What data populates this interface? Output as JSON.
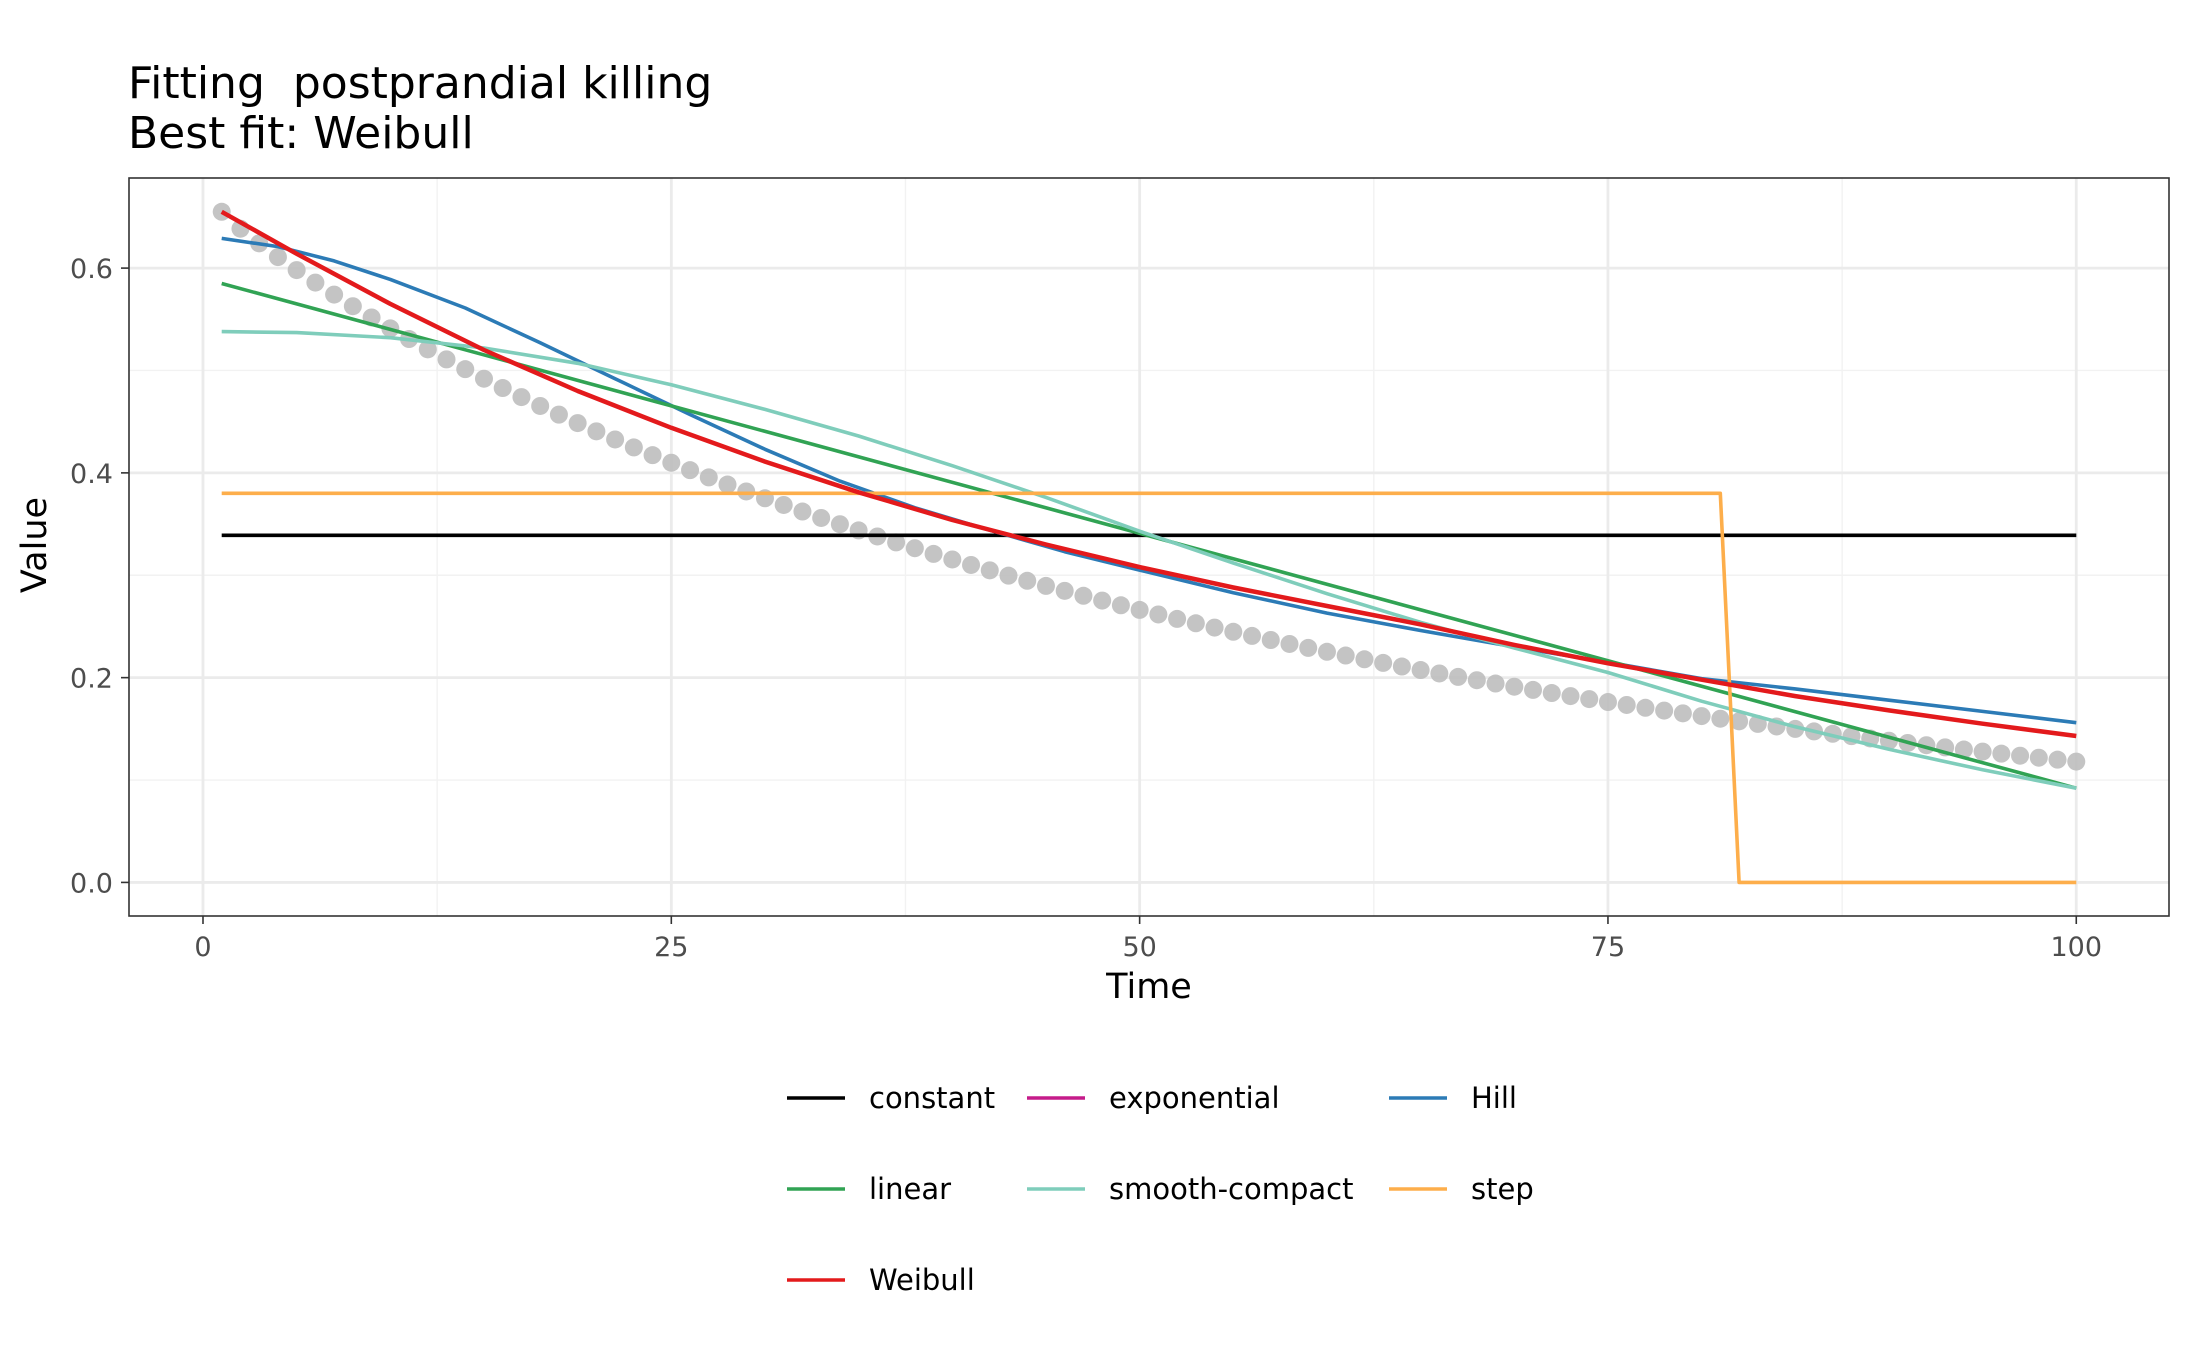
{
  "chart_data": {
    "type": "line",
    "title_icon": "",
    "title": "Fitting  postprandial killing",
    "subtitle": "Best fit: Weibull",
    "xlabel": "Time",
    "ylabel": "Value",
    "xlim": [
      -3.95,
      104.95
    ],
    "ylim": [
      -0.0328,
      0.688
    ],
    "x_ticks": [
      0,
      25,
      50,
      75,
      100
    ],
    "x_tick_labels": [
      "0",
      "25",
      "50",
      "75",
      "100"
    ],
    "y_ticks": [
      0.0,
      0.2,
      0.4,
      0.6
    ],
    "y_tick_labels": [
      "0.0",
      "0.2",
      "0.4",
      "0.6"
    ],
    "grid": true,
    "legend_position": "bottom",
    "observed": {
      "color": "#bebebe",
      "model": {
        "a": 0.655,
        "b": 0.0182,
        "k": 0.915
      },
      "x_start": 1,
      "x_end": 100,
      "step": 1
    },
    "series": [
      {
        "name": "constant",
        "color": "#000000",
        "points": [
          [
            1,
            0.339
          ],
          [
            100,
            0.339
          ]
        ]
      },
      {
        "name": "exponential",
        "color": "#c51b8a",
        "points": []
      },
      {
        "name": "Hill",
        "color": "#2c7bb6",
        "points": [
          [
            1,
            0.629
          ],
          [
            4,
            0.621
          ],
          [
            7,
            0.607
          ],
          [
            10,
            0.589
          ],
          [
            14,
            0.561
          ],
          [
            18,
            0.527
          ],
          [
            22,
            0.492
          ],
          [
            26,
            0.457
          ],
          [
            30,
            0.423
          ],
          [
            34,
            0.392
          ],
          [
            38,
            0.366
          ],
          [
            42,
            0.344
          ],
          [
            46,
            0.323
          ],
          [
            50,
            0.305
          ],
          [
            55,
            0.283
          ],
          [
            60,
            0.263
          ],
          [
            65,
            0.246
          ],
          [
            70,
            0.23
          ],
          [
            75,
            0.215
          ],
          [
            80,
            0.199
          ],
          [
            85,
            0.189
          ],
          [
            90,
            0.178
          ],
          [
            95,
            0.167
          ],
          [
            100,
            0.156
          ]
        ]
      },
      {
        "name": "linear",
        "color": "#31a354",
        "points": [
          [
            1,
            0.585
          ],
          [
            100,
            0.092
          ]
        ]
      },
      {
        "name": "smooth-compact",
        "color": "#7fcdbb",
        "points": [
          [
            1,
            0.538
          ],
          [
            5,
            0.537
          ],
          [
            10,
            0.532
          ],
          [
            15,
            0.522
          ],
          [
            20,
            0.507
          ],
          [
            25,
            0.486
          ],
          [
            30,
            0.462
          ],
          [
            35,
            0.436
          ],
          [
            40,
            0.407
          ],
          [
            45,
            0.376
          ],
          [
            50,
            0.343
          ],
          [
            55,
            0.312
          ],
          [
            60,
            0.282
          ],
          [
            65,
            0.254
          ],
          [
            70,
            0.229
          ],
          [
            75,
            0.205
          ],
          [
            80,
            0.177
          ],
          [
            85,
            0.152
          ],
          [
            90,
            0.13
          ],
          [
            95,
            0.11
          ],
          [
            100,
            0.092
          ]
        ]
      },
      {
        "name": "step",
        "color": "#fdae4b",
        "points": [
          [
            1,
            0.38
          ],
          [
            81,
            0.38
          ],
          [
            82,
            0.0
          ],
          [
            100,
            0.0
          ]
        ]
      },
      {
        "name": "Weibull",
        "color": "#e31a1c",
        "points": [
          [
            1,
            0.655
          ],
          [
            5,
            0.614
          ],
          [
            10,
            0.565
          ],
          [
            15,
            0.52
          ],
          [
            20,
            0.48
          ],
          [
            25,
            0.444
          ],
          [
            30,
            0.411
          ],
          [
            35,
            0.381
          ],
          [
            40,
            0.354
          ],
          [
            45,
            0.33
          ],
          [
            50,
            0.308
          ],
          [
            55,
            0.288
          ],
          [
            60,
            0.27
          ],
          [
            65,
            0.252
          ],
          [
            70,
            0.232
          ],
          [
            75,
            0.214
          ],
          [
            80,
            0.198
          ],
          [
            85,
            0.182
          ],
          [
            90,
            0.168
          ],
          [
            95,
            0.155
          ],
          [
            100,
            0.143
          ]
        ]
      }
    ]
  }
}
